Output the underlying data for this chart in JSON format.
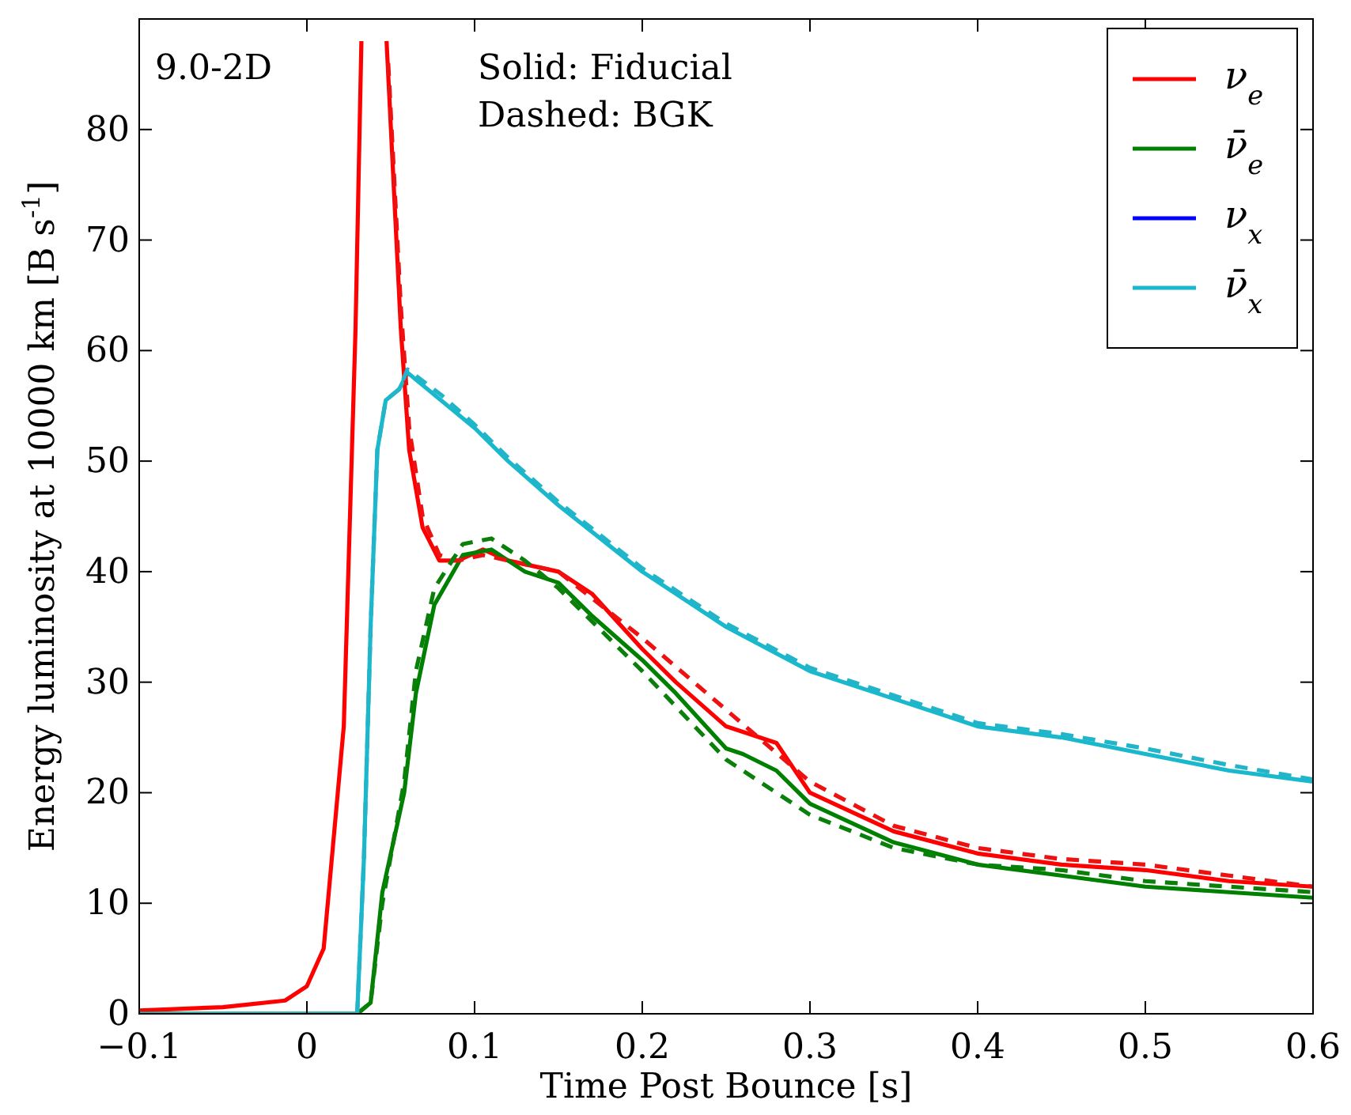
{
  "chart_data": {
    "type": "line",
    "xlabel": "Time Post Bounce [s]",
    "ylabel": "Energy luminosity at 10000 km [B s$^{-1}$]",
    "annotations": [
      "9.0-2D",
      "Solid: Fiducial",
      "Dashed: BGK"
    ],
    "xlim": [
      -0.1,
      0.6
    ],
    "xticks": [
      {
        "value": -0.1,
        "label": "−0.1"
      },
      0.0,
      0.1,
      0.2,
      0.3,
      0.4,
      0.5,
      0.6
    ],
    "ylim": [
      0,
      90
    ],
    "yticks": [
      0,
      10,
      20,
      30,
      40,
      50,
      60,
      70,
      80
    ],
    "grid": false,
    "legend": "top right",
    "series": [
      {
        "name": "ν$_{e}$",
        "color": "#ff0000",
        "line_style": "solid",
        "x": [
          -0.1,
          -0.05,
          -0.013,
          0.0,
          0.01,
          0.022,
          0.029,
          0.0325,
          0.04,
          0.0475,
          0.056,
          0.061,
          0.069,
          0.079,
          0.09,
          0.105,
          0.12,
          0.15,
          0.17,
          0.2,
          0.22,
          0.25,
          0.26,
          0.28,
          0.3,
          0.35,
          0.4,
          0.45,
          0.5,
          0.55,
          0.6
        ],
        "values": [
          0.3,
          0.6,
          1.2,
          2.5,
          5.9,
          26,
          62,
          88,
          null,
          88,
          62,
          51,
          44,
          41,
          41,
          42,
          41,
          40,
          38,
          33,
          30,
          26,
          25.5,
          24.5,
          20,
          16.5,
          14.5,
          13.5,
          13,
          12,
          11.5
        ]
      },
      {
        "name": "ν̄$_{e}$",
        "color": "#008000",
        "line_style": "solid",
        "x": [
          -0.1,
          0.03,
          0.038,
          0.045,
          0.058,
          0.065,
          0.076,
          0.093,
          0.11,
          0.13,
          0.15,
          0.17,
          0.2,
          0.22,
          0.25,
          0.26,
          0.28,
          0.3,
          0.35,
          0.4,
          0.45,
          0.5,
          0.55,
          0.6
        ],
        "values": [
          0,
          0,
          1,
          11,
          20,
          29,
          37,
          41.5,
          42,
          40,
          39,
          36,
          32,
          29,
          24,
          23.5,
          22,
          19,
          15.5,
          13.5,
          12.5,
          11.5,
          11,
          10.5
        ]
      },
      {
        "name": "ν$_{x}$",
        "color": "#0000ff",
        "line_style": "solid"
      },
      {
        "name": "ν̄$_{x}$",
        "color": "#1ab8cc",
        "line_style": "solid",
        "x": [
          -0.1,
          0.03,
          0.034,
          0.038,
          0.042,
          0.047,
          0.055,
          0.06,
          0.08,
          0.1,
          0.12,
          0.15,
          0.2,
          0.25,
          0.3,
          0.35,
          0.4,
          0.45,
          0.5,
          0.55,
          0.6
        ],
        "values": [
          0,
          0,
          14,
          35,
          51,
          55.5,
          56.5,
          58,
          55.5,
          53,
          50,
          46,
          40,
          35,
          31,
          28.5,
          26,
          25,
          23.5,
          22,
          21
        ]
      },
      {
        "color": "#ee1111",
        "line_style": "dashed",
        "x": [
          0.0485,
          0.056,
          0.061,
          0.069,
          0.079,
          0.09,
          0.105,
          0.12,
          0.15,
          0.2,
          0.25,
          0.3,
          0.35,
          0.4,
          0.45,
          0.5,
          0.55,
          0.6
        ],
        "values": [
          86,
          64,
          53,
          45,
          41.5,
          41,
          41.5,
          41,
          40,
          34,
          27.5,
          21,
          17,
          15,
          14,
          13.5,
          12.5,
          11.5
        ]
      },
      {
        "color": "#0a800a",
        "line_style": "dashed",
        "x": [
          0.03,
          0.038,
          0.045,
          0.058,
          0.065,
          0.076,
          0.093,
          0.11,
          0.13,
          0.15,
          0.2,
          0.25,
          0.3,
          0.35,
          0.4,
          0.45,
          0.5,
          0.55,
          0.6
        ],
        "values": [
          0,
          1,
          10,
          21,
          31,
          38.5,
          42.5,
          43,
          41,
          38.5,
          31,
          23,
          18,
          15,
          13.5,
          13,
          12,
          11.5,
          11
        ]
      },
      {
        "color": "#22b4c8",
        "line_style": "dashed",
        "x": [
          0.03,
          0.034,
          0.038,
          0.042,
          0.047,
          0.055,
          0.06,
          0.08,
          0.1,
          0.12,
          0.15,
          0.2,
          0.25,
          0.3,
          0.35,
          0.4,
          0.45,
          0.5,
          0.55,
          0.6
        ],
        "values": [
          0,
          14,
          35,
          51,
          55.5,
          56.5,
          58.3,
          56,
          53.3,
          50.3,
          46.3,
          40.3,
          35.3,
          31.3,
          28.8,
          26.3,
          25.3,
          24,
          22.5,
          21.2
        ]
      }
    ]
  }
}
